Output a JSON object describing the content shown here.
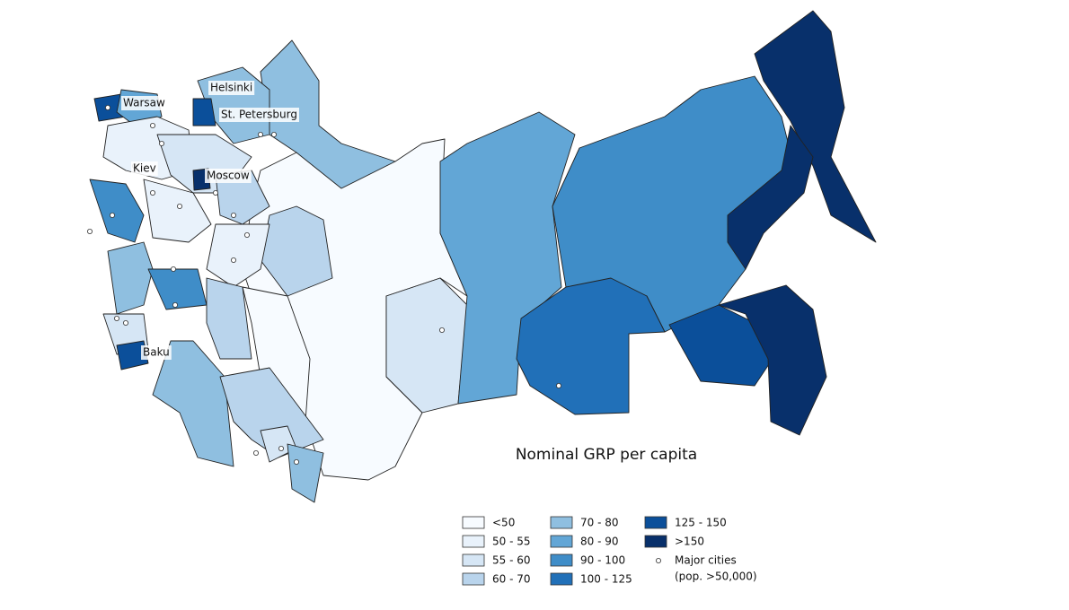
{
  "title": "Nominal GRP per capita",
  "legend": [
    {
      "label": "<50",
      "color": "#f7fbff"
    },
    {
      "label": "50 - 55",
      "color": "#e9f2fb"
    },
    {
      "label": "55 - 60",
      "color": "#d6e6f5"
    },
    {
      "label": "60 - 70",
      "color": "#b9d4ec"
    },
    {
      "label": "70 - 80",
      "color": "#8fbfe0"
    },
    {
      "label": "80 - 90",
      "color": "#62a6d6"
    },
    {
      "label": "90 - 100",
      "color": "#3f8dc8"
    },
    {
      "label": "100 - 125",
      "color": "#2170b8"
    },
    {
      "label": "125 - 150",
      "color": "#0b4f9a"
    },
    {
      "label": ">150",
      "color": "#08306b"
    }
  ],
  "cities_legend": [
    "Major cities",
    "(pop. >50,000)"
  ],
  "cities": [
    "Helsinki",
    "Warsaw",
    "St. Petersburg",
    "Kiev",
    "Moscow",
    "Baku"
  ]
}
